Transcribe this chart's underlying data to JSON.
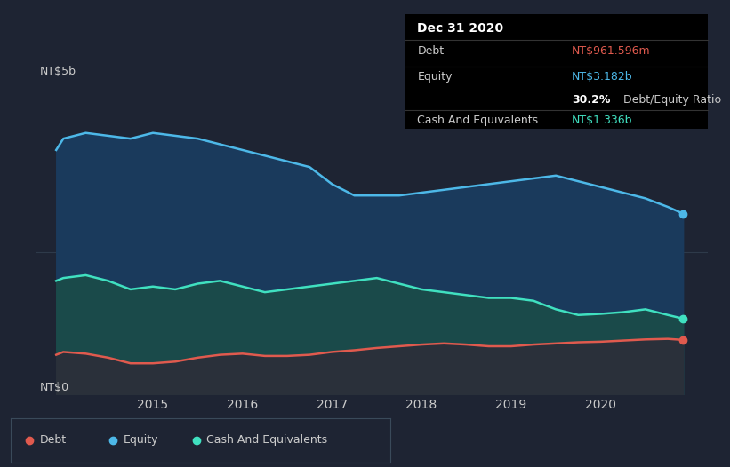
{
  "background_color": "#1e2433",
  "chart_bg_color": "#1e2433",
  "ylabel_top": "NT$5b",
  "ylabel_bottom": "NT$0",
  "x_ticks": [
    2015,
    2016,
    2017,
    2018,
    2019,
    2020
  ],
  "xlim": [
    2013.7,
    2021.2
  ],
  "ylim": [
    0,
    5.5
  ],
  "debt_color": "#e05a4e",
  "equity_color": "#4db8e8",
  "cash_color": "#40e0c0",
  "equity_fill_color": "#1a3a5c",
  "cash_fill_color": "#1a4a4a",
  "grid_color": "#2e3a4a",
  "text_color": "#cccccc",
  "legend_border": "#3a4a5a",
  "time": [
    2013.92,
    2014.0,
    2014.25,
    2014.5,
    2014.75,
    2015.0,
    2015.25,
    2015.5,
    2015.75,
    2016.0,
    2016.25,
    2016.5,
    2016.75,
    2017.0,
    2017.25,
    2017.5,
    2017.75,
    2018.0,
    2018.25,
    2018.5,
    2018.75,
    2019.0,
    2019.25,
    2019.5,
    2019.75,
    2020.0,
    2020.25,
    2020.5,
    2020.75,
    2020.92
  ],
  "equity": [
    4.3,
    4.5,
    4.6,
    4.55,
    4.5,
    4.6,
    4.55,
    4.5,
    4.4,
    4.3,
    4.2,
    4.1,
    4.0,
    3.7,
    3.5,
    3.5,
    3.5,
    3.55,
    3.6,
    3.65,
    3.7,
    3.75,
    3.8,
    3.85,
    3.75,
    3.65,
    3.55,
    3.45,
    3.3,
    3.182
  ],
  "cash": [
    2.0,
    2.05,
    2.1,
    2.0,
    1.85,
    1.9,
    1.85,
    1.95,
    2.0,
    1.9,
    1.8,
    1.85,
    1.9,
    1.95,
    2.0,
    2.05,
    1.95,
    1.85,
    1.8,
    1.75,
    1.7,
    1.7,
    1.65,
    1.5,
    1.4,
    1.42,
    1.45,
    1.5,
    1.4,
    1.336
  ],
  "debt": [
    0.7,
    0.75,
    0.72,
    0.65,
    0.55,
    0.55,
    0.58,
    0.65,
    0.7,
    0.72,
    0.68,
    0.68,
    0.7,
    0.75,
    0.78,
    0.82,
    0.85,
    0.88,
    0.9,
    0.88,
    0.85,
    0.85,
    0.88,
    0.9,
    0.92,
    0.93,
    0.95,
    0.97,
    0.98,
    0.9616
  ],
  "tooltip": {
    "date": "Dec 31 2020",
    "debt_label": "Debt",
    "debt_value": "NT$961.596m",
    "equity_label": "Equity",
    "equity_value": "NT$3.182b",
    "ratio_value": "30.2%",
    "ratio_label": "Debt/Equity Ratio",
    "cash_label": "Cash And Equivalents",
    "cash_value": "NT$1.336b"
  },
  "legend": [
    {
      "label": "Debt",
      "color": "#e05a4e"
    },
    {
      "label": "Equity",
      "color": "#4db8e8"
    },
    {
      "label": "Cash And Equivalents",
      "color": "#40e0c0"
    }
  ]
}
